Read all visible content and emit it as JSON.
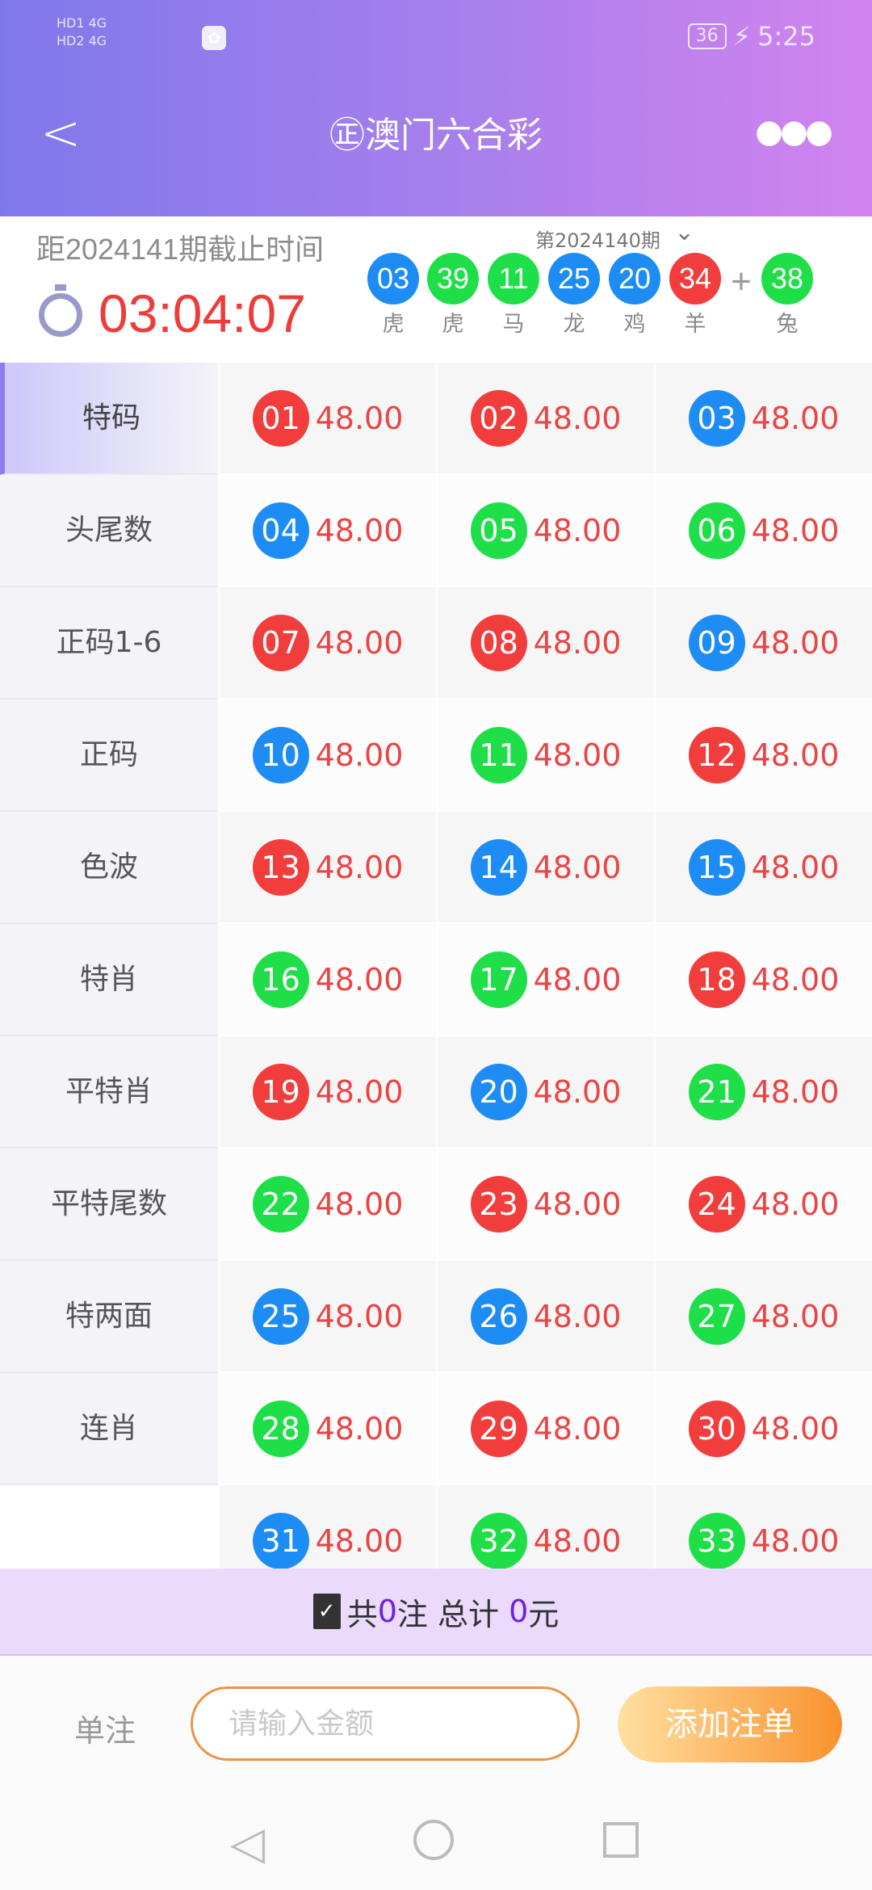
{
  "status_bar": {
    "sim1": "HD1 4G",
    "sim2": "HD2 4G",
    "battery": "36",
    "time": "5:25"
  },
  "header": {
    "title": "㊣澳门六合彩"
  },
  "info": {
    "deadline_label": "距2024141期截止时间",
    "countdown": "03:04:07",
    "last_period": "第2024140期",
    "results": [
      {
        "n": "03",
        "z": "虎",
        "c": "blue"
      },
      {
        "n": "39",
        "z": "虎",
        "c": "green"
      },
      {
        "n": "11",
        "z": "马",
        "c": "green"
      },
      {
        "n": "25",
        "z": "龙",
        "c": "blue"
      },
      {
        "n": "20",
        "z": "鸡",
        "c": "blue"
      },
      {
        "n": "34",
        "z": "羊",
        "c": "red"
      }
    ],
    "special": {
      "n": "38",
      "z": "兔",
      "c": "green"
    },
    "plus": "+"
  },
  "sidebar": {
    "items": [
      "特码",
      "头尾数",
      "正码1-6",
      "正码",
      "色波",
      "特肖",
      "平特肖",
      "平特尾数",
      "特两面",
      "连肖"
    ]
  },
  "colors": {
    "red": "#f23d3d",
    "blue": "#1e8cf5",
    "green": "#1edf48"
  },
  "numbers": [
    [
      "01",
      "red"
    ],
    [
      "02",
      "red"
    ],
    [
      "03",
      "blue"
    ],
    [
      "04",
      "blue"
    ],
    [
      "05",
      "green"
    ],
    [
      "06",
      "green"
    ],
    [
      "07",
      "red"
    ],
    [
      "08",
      "red"
    ],
    [
      "09",
      "blue"
    ],
    [
      "10",
      "blue"
    ],
    [
      "11",
      "green"
    ],
    [
      "12",
      "red"
    ],
    [
      "13",
      "red"
    ],
    [
      "14",
      "blue"
    ],
    [
      "15",
      "blue"
    ],
    [
      "16",
      "green"
    ],
    [
      "17",
      "green"
    ],
    [
      "18",
      "red"
    ],
    [
      "19",
      "red"
    ],
    [
      "20",
      "blue"
    ],
    [
      "21",
      "green"
    ],
    [
      "22",
      "green"
    ],
    [
      "23",
      "red"
    ],
    [
      "24",
      "red"
    ],
    [
      "25",
      "blue"
    ],
    [
      "26",
      "blue"
    ],
    [
      "27",
      "green"
    ],
    [
      "28",
      "green"
    ],
    [
      "29",
      "red"
    ],
    [
      "30",
      "red"
    ],
    [
      "31",
      "blue"
    ],
    [
      "32",
      "green"
    ],
    [
      "33",
      "green"
    ]
  ],
  "odds": "48.00",
  "summary": {
    "prefix": "共",
    "count": "0",
    "mid": "注 总计 ",
    "total": "0",
    "suffix": "元"
  },
  "bet": {
    "label": "单注",
    "placeholder": "请输入金额",
    "add_label": "添加注单"
  }
}
